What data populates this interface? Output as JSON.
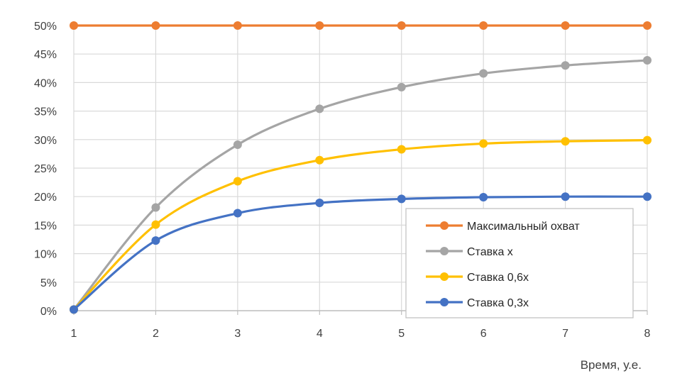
{
  "chart_data": {
    "type": "line",
    "title": "",
    "xlabel": "Время, у.е.",
    "ylabel": "",
    "x": [
      1,
      2,
      3,
      4,
      5,
      6,
      7,
      8
    ],
    "xlim": [
      1,
      8
    ],
    "ylim": [
      0,
      50
    ],
    "y_tick_values": [
      0,
      5,
      10,
      15,
      20,
      25,
      30,
      35,
      40,
      45,
      50
    ],
    "y_tick_labels": [
      "0%",
      "5%",
      "10%",
      "15%",
      "20%",
      "25%",
      "30%",
      "35%",
      "40%",
      "45%",
      "50%"
    ],
    "x_tick_labels": [
      "1",
      "2",
      "3",
      "4",
      "5",
      "6",
      "7",
      "8"
    ],
    "grid": true,
    "legend_position": "bottom-right",
    "series": [
      {
        "name": "Максимальный охват",
        "color": "#ED7D31",
        "values": [
          50,
          50,
          50,
          50,
          50,
          50,
          50,
          50
        ]
      },
      {
        "name": "Ставка x",
        "color": "#A5A5A5",
        "values": [
          0.2,
          18.1,
          29.1,
          35.4,
          39.2,
          41.6,
          43.0,
          43.9
        ]
      },
      {
        "name": "Ставка 0,6x",
        "color": "#FFC000",
        "values": [
          0.2,
          15.1,
          22.7,
          26.4,
          28.3,
          29.3,
          29.7,
          29.9
        ]
      },
      {
        "name": "Ставка 0,3x",
        "color": "#4472C4",
        "values": [
          0.2,
          12.3,
          17.1,
          18.9,
          19.6,
          19.9,
          20.0,
          20.0
        ]
      }
    ]
  }
}
